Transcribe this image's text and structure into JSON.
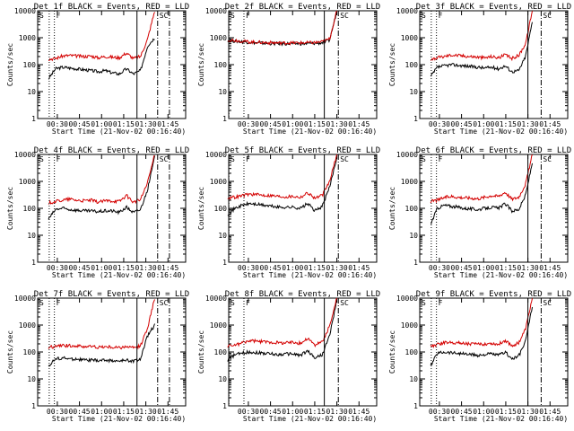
{
  "chart_data": [
    {
      "title": "Det 1f BLACK = Events, RED = LLD",
      "type": "line",
      "xlabel": "Start Time (21-Nov-02 00:16:40)",
      "ylabel": "Counts/sec",
      "y_scale": "log",
      "ylim": [
        1,
        10000
      ],
      "x_ticks": [
        "00:30",
        "00:45",
        "01:00",
        "01:15",
        "01:30",
        "01:45"
      ],
      "series": [
        {
          "color": "#000000",
          "x_start": "00:24",
          "x_end": "01:36",
          "values": [
            30,
            70,
            80,
            75,
            70,
            65,
            60,
            55,
            60,
            50,
            45,
            70,
            45,
            60,
            500,
            1000
          ]
        },
        {
          "color": "#d40000",
          "x_start": "00:24",
          "x_end": "01:36",
          "values": [
            160,
            170,
            210,
            220,
            210,
            200,
            210,
            180,
            200,
            190,
            180,
            270,
            170,
            200,
            900,
            10000
          ]
        }
      ],
      "markers": [
        "S",
        "F",
        "SC"
      ]
    },
    {
      "title": "Det 2f BLACK = Events, RED = LLD",
      "type": "line",
      "xlabel": "Start Time (21-Nov-02 00:16:40)",
      "ylabel": "Counts/sec",
      "y_scale": "log",
      "ylim": [
        1,
        10000
      ],
      "x_ticks": [
        "00:30",
        "00:45",
        "01:00",
        "01:15",
        "01:30",
        "01:45"
      ],
      "series": [
        {
          "color": "#000000",
          "x_start": "00:16",
          "x_end": "01:30",
          "values": [
            800,
            750,
            700,
            680,
            640,
            620,
            610,
            600,
            600,
            600,
            600,
            600,
            620,
            650,
            800,
            10000
          ]
        },
        {
          "color": "#d40000",
          "x_start": "00:16",
          "x_end": "01:30",
          "values": [
            850,
            800,
            750,
            700,
            680,
            660,
            650,
            640,
            640,
            640,
            640,
            650,
            660,
            700,
            900,
            10000
          ]
        }
      ],
      "markers": [
        "S",
        "F",
        "SC"
      ]
    },
    {
      "title": "Det 3f BLACK = Events, RED = LLD",
      "type": "line",
      "xlabel": "Start Time (21-Nov-02 00:16:40)",
      "ylabel": "Counts/sec",
      "y_scale": "log",
      "ylim": [
        1,
        10000
      ],
      "x_ticks": [
        "00:30",
        "00:45",
        "01:00",
        "01:15",
        "01:30",
        "01:45"
      ],
      "series": [
        {
          "color": "#000000",
          "x_start": "00:24",
          "x_end": "01:33",
          "values": [
            35,
            80,
            90,
            100,
            95,
            90,
            85,
            80,
            75,
            80,
            70,
            90,
            55,
            60,
            200,
            4000
          ]
        },
        {
          "color": "#d40000",
          "x_start": "00:24",
          "x_end": "01:33",
          "values": [
            160,
            180,
            200,
            230,
            220,
            210,
            200,
            190,
            180,
            200,
            180,
            230,
            170,
            220,
            600,
            10000
          ]
        }
      ],
      "markers": [
        "S",
        "F",
        "SC"
      ]
    },
    {
      "title": "Det 4f BLACK = Events, RED = LLD",
      "type": "line",
      "xlabel": "Start Time (21-Nov-02 00:16:40)",
      "ylabel": "Counts/sec",
      "y_scale": "log",
      "ylim": [
        1,
        10000
      ],
      "x_ticks": [
        "00:30",
        "00:45",
        "01:00",
        "01:15",
        "01:30",
        "01:45"
      ],
      "series": [
        {
          "color": "#000000",
          "x_start": "00:24",
          "x_end": "01:36",
          "values": [
            40,
            90,
            100,
            90,
            85,
            80,
            80,
            75,
            80,
            80,
            70,
            110,
            70,
            90,
            500,
            8000
          ]
        },
        {
          "color": "#d40000",
          "x_start": "00:24",
          "x_end": "01:36",
          "values": [
            160,
            180,
            200,
            220,
            200,
            190,
            200,
            170,
            190,
            190,
            180,
            300,
            170,
            210,
            900,
            10000
          ]
        }
      ],
      "markers": [
        "S",
        "F",
        "SC"
      ]
    },
    {
      "title": "Det 5f BLACK = Events, RED = LLD",
      "type": "line",
      "xlabel": "Start Time (21-Nov-02 00:16:40)",
      "ylabel": "Counts/sec",
      "y_scale": "log",
      "ylim": [
        1,
        10000
      ],
      "x_ticks": [
        "00:30",
        "00:45",
        "01:00",
        "01:15",
        "01:30",
        "01:45"
      ],
      "series": [
        {
          "color": "#000000",
          "x_start": "00:16",
          "x_end": "01:30",
          "values": [
            60,
            100,
            130,
            150,
            140,
            130,
            120,
            110,
            110,
            110,
            100,
            150,
            80,
            120,
            600,
            8000
          ]
        },
        {
          "color": "#d40000",
          "x_start": "00:16",
          "x_end": "01:30",
          "values": [
            250,
            260,
            300,
            340,
            320,
            310,
            300,
            280,
            270,
            280,
            260,
            380,
            240,
            300,
            1000,
            10000
          ]
        }
      ],
      "markers": [
        "S",
        "F",
        "SC"
      ]
    },
    {
      "title": "Det 6f BLACK = Events, RED = LLD",
      "type": "line",
      "xlabel": "Start Time (21-Nov-02 00:16:40)",
      "ylabel": "Counts/sec",
      "y_scale": "log",
      "ylim": [
        1,
        10000
      ],
      "x_ticks": [
        "00:30",
        "00:45",
        "01:00",
        "01:15",
        "01:30",
        "01:45"
      ],
      "series": [
        {
          "color": "#000000",
          "x_start": "00:24",
          "x_end": "01:33",
          "values": [
            25,
            100,
            130,
            120,
            110,
            100,
            95,
            90,
            100,
            110,
            100,
            150,
            80,
            90,
            300,
            5000
          ]
        },
        {
          "color": "#d40000",
          "x_start": "00:24",
          "x_end": "01:33",
          "values": [
            180,
            200,
            250,
            280,
            260,
            250,
            240,
            230,
            260,
            300,
            280,
            400,
            220,
            260,
            800,
            10000
          ]
        }
      ],
      "markers": [
        "S",
        "F",
        "SC"
      ]
    },
    {
      "title": "Det 7f BLACK = Events, RED = LLD",
      "type": "line",
      "xlabel": "Start Time (21-Nov-02 00:16:40)",
      "ylabel": "Counts/sec",
      "y_scale": "log",
      "ylim": [
        1,
        10000
      ],
      "x_ticks": [
        "00:30",
        "00:45",
        "01:00",
        "01:15",
        "01:30",
        "01:45"
      ],
      "series": [
        {
          "color": "#000000",
          "x_start": "00:24",
          "x_end": "01:36",
          "values": [
            30,
            55,
            60,
            55,
            55,
            50,
            50,
            48,
            50,
            48,
            45,
            50,
            45,
            55,
            400,
            1000
          ]
        },
        {
          "color": "#d40000",
          "x_start": "00:24",
          "x_end": "01:36",
          "values": [
            150,
            160,
            170,
            175,
            165,
            160,
            160,
            150,
            155,
            150,
            145,
            160,
            140,
            170,
            800,
            10000
          ]
        }
      ],
      "markers": [
        "S",
        "F",
        "SC"
      ]
    },
    {
      "title": "Det 8f BLACK = Events, RED = LLD",
      "type": "line",
      "xlabel": "Start Time (21-Nov-02 00:16:40)",
      "ylabel": "Counts/sec",
      "y_scale": "log",
      "ylim": [
        1,
        10000
      ],
      "x_ticks": [
        "00:30",
        "00:45",
        "01:00",
        "01:15",
        "01:30",
        "01:45"
      ],
      "series": [
        {
          "color": "#000000",
          "x_start": "00:16",
          "x_end": "01:30",
          "values": [
            50,
            80,
            90,
            100,
            95,
            90,
            85,
            80,
            85,
            85,
            75,
            110,
            60,
            80,
            400,
            8000
          ]
        },
        {
          "color": "#d40000",
          "x_start": "00:16",
          "x_end": "01:30",
          "values": [
            170,
            180,
            220,
            260,
            250,
            240,
            230,
            220,
            220,
            230,
            210,
            320,
            180,
            240,
            900,
            10000
          ]
        }
      ],
      "markers": [
        "S",
        "F",
        "SC"
      ]
    },
    {
      "title": "Det 9f BLACK = Events, RED = LLD",
      "type": "line",
      "xlabel": "Start Time (21-Nov-02 00:16:40)",
      "ylabel": "Counts/sec",
      "y_scale": "log",
      "ylim": [
        1,
        10000
      ],
      "x_ticks": [
        "00:30",
        "00:45",
        "01:00",
        "01:15",
        "01:30",
        "01:45"
      ],
      "series": [
        {
          "color": "#000000",
          "x_start": "00:24",
          "x_end": "01:33",
          "values": [
            30,
            90,
            100,
            95,
            90,
            85,
            80,
            75,
            80,
            85,
            75,
            100,
            55,
            70,
            250,
            5000
          ]
        },
        {
          "color": "#d40000",
          "x_start": "00:24",
          "x_end": "01:33",
          "values": [
            160,
            190,
            220,
            230,
            220,
            210,
            200,
            190,
            200,
            210,
            190,
            270,
            170,
            220,
            700,
            10000
          ]
        }
      ],
      "markers": [
        "S",
        "F",
        "SC"
      ]
    }
  ]
}
